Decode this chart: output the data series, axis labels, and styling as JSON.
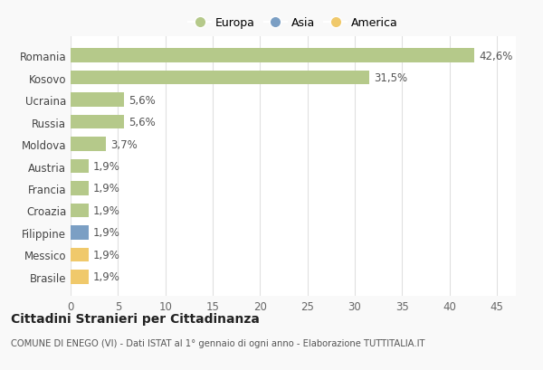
{
  "categories": [
    "Romania",
    "Kosovo",
    "Ucraina",
    "Russia",
    "Moldova",
    "Austria",
    "Francia",
    "Croazia",
    "Filippine",
    "Messico",
    "Brasile"
  ],
  "values": [
    42.6,
    31.5,
    5.6,
    5.6,
    3.7,
    1.9,
    1.9,
    1.9,
    1.9,
    1.9,
    1.9
  ],
  "bar_colors": [
    "#b5c98a",
    "#b5c98a",
    "#b5c98a",
    "#b5c98a",
    "#b5c98a",
    "#b5c98a",
    "#b5c98a",
    "#b5c98a",
    "#7b9fc4",
    "#f0c96b",
    "#f0c96b"
  ],
  "labels": [
    "42,6%",
    "31,5%",
    "5,6%",
    "5,6%",
    "3,7%",
    "1,9%",
    "1,9%",
    "1,9%",
    "1,9%",
    "1,9%",
    "1,9%"
  ],
  "legend": [
    {
      "label": "Europa",
      "color": "#b5c98a"
    },
    {
      "label": "Asia",
      "color": "#7b9fc4"
    },
    {
      "label": "America",
      "color": "#f0c96b"
    }
  ],
  "xlim": [
    0,
    47
  ],
  "xticks": [
    0,
    5,
    10,
    15,
    20,
    25,
    30,
    35,
    40,
    45
  ],
  "title": "Cittadini Stranieri per Cittadinanza",
  "subtitle": "COMUNE DI ENEGO (VI) - Dati ISTAT al 1° gennaio di ogni anno - Elaborazione TUTTITALIA.IT",
  "background_color": "#f9f9f9",
  "plot_background": "#ffffff",
  "grid_color": "#e0e0e0",
  "bar_height": 0.65,
  "label_fontsize": 8.5,
  "ytick_fontsize": 8.5,
  "xtick_fontsize": 8.5
}
